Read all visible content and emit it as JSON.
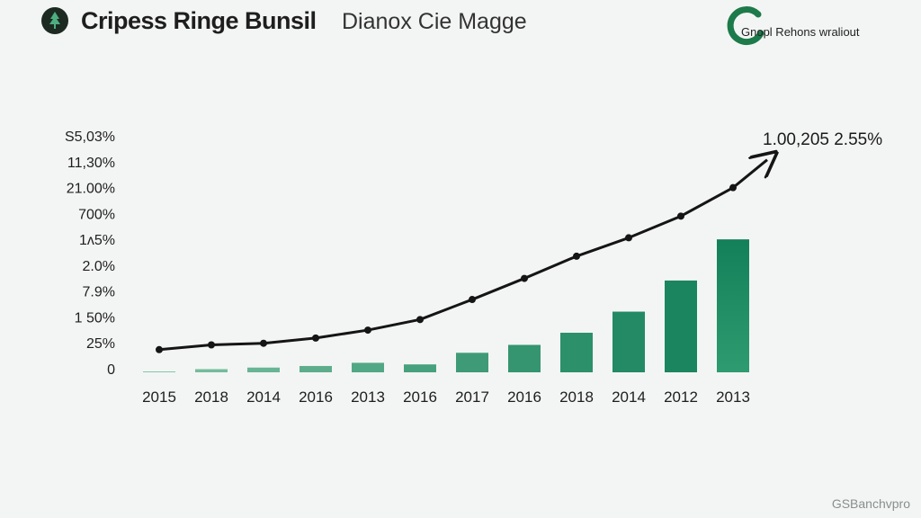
{
  "header": {
    "title": "Cripess Ringe Bunsil",
    "subtitle": "Dianox Cie Magge",
    "brand_text": "Gnopl Rehons wraliout"
  },
  "watermark": "GSBanchvpro",
  "colors": {
    "background": "#f3f5f4",
    "bar_light": "#86c6a8",
    "bar_dark": "#128059",
    "line": "#151515",
    "brand_green": "#1d7a4a"
  },
  "chart_data": {
    "type": "bar",
    "title": "",
    "xlabel": "",
    "ylabel": "",
    "y_tick_labels": [
      "S5,03%",
      "11,30%",
      "21.00%",
      "700%",
      "1ʌ5%",
      "2.0%",
      "7.9%",
      "1 50%",
      "25%",
      "0"
    ],
    "categories": [
      "2015",
      "2018",
      "2014",
      "2016",
      "2013",
      "2016",
      "2017",
      "2016",
      "2018",
      "2014",
      "2012",
      "2013"
    ],
    "series": [
      {
        "kind": "bar",
        "values": [
          0.1,
          0.6,
          0.9,
          1.2,
          1.8,
          1.5,
          3.7,
          5.2,
          7.5,
          11.5,
          17.4,
          25.2
        ]
      },
      {
        "kind": "line",
        "values": [
          4.3,
          5.2,
          5.5,
          6.5,
          8.0,
          10.0,
          13.8,
          17.8,
          22.0,
          25.5,
          29.6,
          35.0
        ]
      }
    ],
    "ylim": [
      0,
      45
    ],
    "grid": false,
    "annotation": {
      "text": "1.00,205 2.55%"
    }
  }
}
